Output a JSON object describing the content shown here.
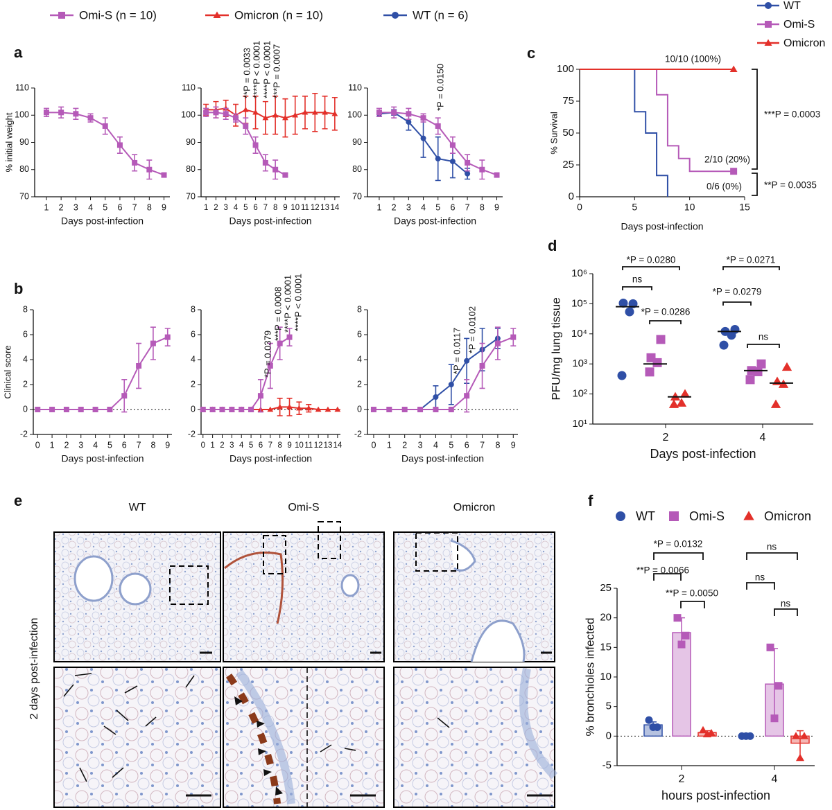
{
  "panel_labels": [
    "a",
    "b",
    "c",
    "d",
    "e",
    "f"
  ],
  "legend": [
    {
      "name": "Omi-S (n = 10)",
      "color": "#b55ab8",
      "marker": "square"
    },
    {
      "name": "Omicron (n = 10)",
      "color": "#e3302a",
      "marker": "triangle"
    },
    {
      "name": "WT (n = 6)",
      "color": "#2f4fa6",
      "marker": "circle"
    }
  ],
  "images": {
    "columns": [
      "WT",
      "Omi-S",
      "Omicron"
    ],
    "row_label": "2 days post-infection"
  },
  "chart_data": [
    {
      "type": "line",
      "ylabel": "% initial weight",
      "xlabel": "Days post-infection",
      "xlim": [
        0.2,
        9.4
      ],
      "xticks": [
        1,
        2,
        3,
        4,
        5,
        6,
        7,
        8,
        9
      ],
      "ylim": [
        70,
        110
      ],
      "yticks": [
        70,
        80,
        90,
        100,
        110
      ],
      "series": [
        {
          "color": "#b55ab8",
          "marker": "square",
          "x": [
            1,
            2,
            3,
            4,
            5,
            6,
            7,
            8,
            9
          ],
          "values": [
            101,
            101,
            100.5,
            99,
            96,
            89,
            82.5,
            80,
            78
          ],
          "errors": [
            1.5,
            2,
            2,
            1.5,
            3,
            3,
            3,
            3.5,
            0.5
          ]
        }
      ]
    },
    {
      "type": "line",
      "xlabel": "Days post-infection",
      "xlim": [
        0.5,
        14.5
      ],
      "xticks": [
        1,
        2,
        3,
        4,
        5,
        6,
        7,
        8,
        9,
        10,
        11,
        12,
        13,
        14
      ],
      "ylim": [
        70,
        110
      ],
      "yticks": [
        70,
        80,
        90,
        100,
        110
      ],
      "series": [
        {
          "color": "#e3302a",
          "marker": "triangle",
          "x": [
            1,
            2,
            3,
            4,
            5,
            6,
            7,
            8,
            9,
            10,
            11,
            12,
            13,
            14
          ],
          "values": [
            102,
            102,
            102.5,
            100,
            102,
            101,
            99,
            100,
            99,
            100,
            101,
            101,
            101,
            100.5
          ],
          "errors": [
            2,
            3,
            3,
            4,
            5,
            6,
            6,
            7,
            7,
            7,
            6,
            7,
            6,
            6
          ]
        },
        {
          "color": "#b55ab8",
          "marker": "square",
          "x": [
            1,
            2,
            3,
            4,
            5,
            6,
            7,
            8,
            9
          ],
          "values": [
            101,
            101,
            100.5,
            99,
            96,
            89,
            82.5,
            80,
            78
          ],
          "errors": [
            1.5,
            2,
            2,
            1.5,
            3,
            3,
            3,
            3.5,
            0.5
          ]
        }
      ],
      "annotations": [
        "**P = 0.0033",
        "****P < 0.0001",
        "****P < 0.0001",
        "***P = 0.0007"
      ]
    },
    {
      "type": "line",
      "xlabel": "Days post-infection",
      "xlim": [
        0.2,
        9.4
      ],
      "xticks": [
        1,
        2,
        3,
        4,
        5,
        6,
        7,
        8,
        9
      ],
      "ylim": [
        70,
        110
      ],
      "yticks": [
        70,
        80,
        90,
        100,
        110
      ],
      "series": [
        {
          "color": "#2f4fa6",
          "marker": "circle",
          "x": [
            1,
            2,
            3,
            4,
            5,
            6,
            7
          ],
          "values": [
            100.5,
            101,
            97.5,
            91.5,
            84,
            83,
            78.5
          ],
          "errors": [
            1,
            1,
            3,
            7,
            8,
            6,
            2
          ]
        },
        {
          "color": "#b55ab8",
          "marker": "square",
          "x": [
            1,
            2,
            3,
            4,
            5,
            6,
            7,
            8,
            9
          ],
          "values": [
            101,
            101,
            100.5,
            99,
            96,
            89,
            82.5,
            80,
            78
          ],
          "errors": [
            1.5,
            2,
            2,
            1.5,
            3,
            3,
            3,
            3.5,
            0.5
          ]
        }
      ],
      "annotations": [
        "*P = 0.0150"
      ]
    },
    {
      "type": "line",
      "ylabel": "Clinical score",
      "xlabel": "Days post-infection",
      "zero_line": true,
      "xlim": [
        -0.3,
        9.3
      ],
      "xticks": [
        0,
        1,
        2,
        3,
        4,
        5,
        6,
        7,
        8,
        9
      ],
      "ylim": [
        -2,
        8
      ],
      "yticks": [
        -2,
        0,
        2,
        4,
        6,
        8
      ],
      "series": [
        {
          "color": "#b55ab8",
          "marker": "square",
          "x": [
            0,
            1,
            2,
            3,
            4,
            5,
            6,
            7,
            8,
            9
          ],
          "values": [
            0,
            0,
            0,
            0,
            0,
            0,
            1.1,
            3.5,
            5.3,
            5.8
          ],
          "errors": [
            0,
            0,
            0,
            0,
            0,
            0,
            1.3,
            1.8,
            1.3,
            0.7
          ]
        }
      ]
    },
    {
      "type": "line",
      "xlabel": "Days post-infection",
      "zero_line": true,
      "xlim": [
        -0.2,
        14.3
      ],
      "xticks": [
        0,
        1,
        2,
        3,
        4,
        5,
        6,
        7,
        8,
        9,
        10,
        11,
        12,
        13,
        14
      ],
      "ylim": [
        -2,
        8
      ],
      "yticks": [
        -2,
        0,
        2,
        4,
        6,
        8
      ],
      "series": [
        {
          "color": "#e3302a",
          "marker": "triangle",
          "x": [
            0,
            1,
            2,
            3,
            4,
            5,
            6,
            7,
            8,
            9,
            10,
            11,
            12,
            13,
            14
          ],
          "values": [
            0,
            0,
            0,
            0,
            0,
            0,
            0,
            0,
            0.2,
            0.2,
            0.1,
            0.1,
            0,
            0,
            0
          ],
          "errors": [
            0,
            0,
            0,
            0,
            0,
            0,
            0,
            0,
            0.7,
            0.7,
            0.5,
            0.3,
            0,
            0,
            0
          ]
        },
        {
          "color": "#b55ab8",
          "marker": "square",
          "x": [
            0,
            1,
            2,
            3,
            4,
            5,
            6,
            7,
            8,
            9
          ],
          "values": [
            0,
            0,
            0,
            0,
            0,
            0,
            1.1,
            3.5,
            5.3,
            5.8
          ],
          "errors": [
            0,
            0,
            0,
            0,
            0,
            0,
            1.3,
            1.8,
            1.3,
            0.7
          ]
        }
      ],
      "annotations": [
        "*P = 0.0379",
        "***P = 0.0008",
        "****P < 0.0001",
        "****P < 0.0001"
      ]
    },
    {
      "type": "line",
      "xlabel": "Days post-infection",
      "zero_line": true,
      "xlim": [
        -0.4,
        9.3
      ],
      "xticks": [
        0,
        1,
        2,
        3,
        4,
        5,
        6,
        7,
        8,
        9
      ],
      "ylim": [
        -2,
        8
      ],
      "yticks": [
        -2,
        0,
        2,
        4,
        6,
        8
      ],
      "series": [
        {
          "color": "#2f4fa6",
          "marker": "circle",
          "x": [
            0,
            1,
            2,
            3,
            4,
            5,
            6,
            7,
            8
          ],
          "values": [
            0,
            0,
            0,
            0,
            1,
            2,
            3.9,
            4.8,
            5.7
          ],
          "errors": [
            0,
            0,
            0,
            0,
            0.9,
            1.6,
            1.8,
            1.7,
            0.8
          ]
        },
        {
          "color": "#b55ab8",
          "marker": "square",
          "x": [
            0,
            1,
            2,
            3,
            4,
            5,
            6,
            7,
            8,
            9
          ],
          "values": [
            0,
            0,
            0,
            0,
            0,
            0,
            1.1,
            3.5,
            5.3,
            5.8
          ],
          "errors": [
            0,
            0,
            0,
            0,
            0,
            0,
            1.3,
            1.8,
            1.3,
            0.7
          ]
        }
      ],
      "annotations": [
        "*P = 0.0117",
        "*P = 0.0102"
      ]
    },
    {
      "type": "step",
      "ylabel": "% Survival",
      "xlabel": "Days post-infection",
      "xlim": [
        0,
        15
      ],
      "xticks": [
        0,
        5,
        10,
        15
      ],
      "ylim": [
        0,
        100
      ],
      "yticks": [
        0,
        25,
        50,
        75,
        100
      ],
      "series": [
        {
          "name": "WT",
          "color": "#2f4fa6",
          "marker": "circle",
          "end_marker": false,
          "x": [
            0,
            5,
            6,
            7,
            8
          ],
          "values": [
            100,
            66.7,
            50,
            16.7,
            0
          ]
        },
        {
          "name": "Omi-S",
          "color": "#b55ab8",
          "marker": "square",
          "end_marker": true,
          "x": [
            0,
            7,
            8,
            9,
            10,
            14
          ],
          "values": [
            100,
            80,
            40,
            30,
            20,
            20
          ]
        },
        {
          "name": "Omicron",
          "color": "#e3302a",
          "marker": "triangle",
          "end_marker": true,
          "x": [
            0,
            14
          ],
          "values": [
            100,
            100
          ]
        }
      ],
      "annotations": [
        "10/10 (100%)",
        "2/10 (20%)",
        "0/6 (0%)",
        "***P = 0.0003",
        "**P = 0.0035"
      ]
    },
    {
      "type": "scatter",
      "log_y": true,
      "ylabel": "PFU/mg lung tissue",
      "xlabel": "Days post-infection",
      "categories": [
        "2",
        "4"
      ],
      "ylim": [
        10,
        1000000
      ],
      "yticks": [
        {
          "value": 10,
          "label": "10¹"
        },
        {
          "value": 100,
          "label": "10²"
        },
        {
          "value": 1000,
          "label": "10³"
        },
        {
          "value": 10000,
          "label": "10⁴"
        },
        {
          "value": 100000,
          "label": "10⁵"
        },
        {
          "value": 1000000,
          "label": "10⁶"
        }
      ],
      "series": [
        {
          "color": "#2f4fa6",
          "marker": "circle",
          "values": [
            [
              100000,
              105000,
              54000,
              410
            ],
            [
              14000,
              12000,
              9000,
              4200
            ]
          ],
          "medians": [
            80000,
            12000
          ]
        },
        {
          "color": "#b55ab8",
          "marker": "square",
          "values": [
            [
              6500,
              1600,
              1100,
              540
            ],
            [
              1000,
              600,
              550,
              300
            ]
          ],
          "medians": [
            1000,
            600
          ]
        },
        {
          "color": "#e3302a",
          "marker": "triangle",
          "values": [
            [
              100,
              80,
              50,
              45
            ],
            [
              780,
              260,
              210,
              45
            ]
          ],
          "medians": [
            80,
            230
          ]
        }
      ],
      "annotations": [
        "*P = 0.0280",
        "ns",
        "*P = 0.0286",
        "*P = 0.0271",
        "*P = 0.0279",
        "ns"
      ]
    },
    {
      "type": "bar",
      "ylabel": "% bronchioles infected",
      "xlabel": "hours post-infection",
      "zero_line": true,
      "categories": [
        "2",
        "4"
      ],
      "ylim": [
        -5,
        25
      ],
      "yticks": [
        -5,
        0,
        5,
        10,
        15,
        20,
        25
      ],
      "series": [
        {
          "name": "WT",
          "color": "#2f4fa6",
          "marker": "circle",
          "values": [
            1.9,
            0
          ],
          "errors": [
            0.5,
            0
          ],
          "points": [
            [
              2.7,
              1.5,
              1.5
            ],
            [
              0,
              0,
              0
            ]
          ]
        },
        {
          "name": "Omi-S",
          "color": "#b55ab8",
          "marker": "square",
          "values": [
            17.5,
            8.8
          ],
          "errors": [
            2.5,
            6
          ],
          "points": [
            [
              20,
              17,
              15.5
            ],
            [
              15,
              8.5,
              3
            ]
          ]
        },
        {
          "name": "Omicron",
          "color": "#e3302a",
          "marker": "triangle",
          "values": [
            0.6,
            -1.2
          ],
          "errors": [
            0.3,
            2.1
          ],
          "points": [
            [
              1,
              0.5,
              0.3
            ],
            [
              0,
              0,
              -3.7
            ]
          ]
        }
      ],
      "annotations": [
        "*P = 0.0132",
        "**P = 0.0066",
        "**P = 0.0050",
        "ns",
        "ns",
        "ns"
      ]
    }
  ]
}
